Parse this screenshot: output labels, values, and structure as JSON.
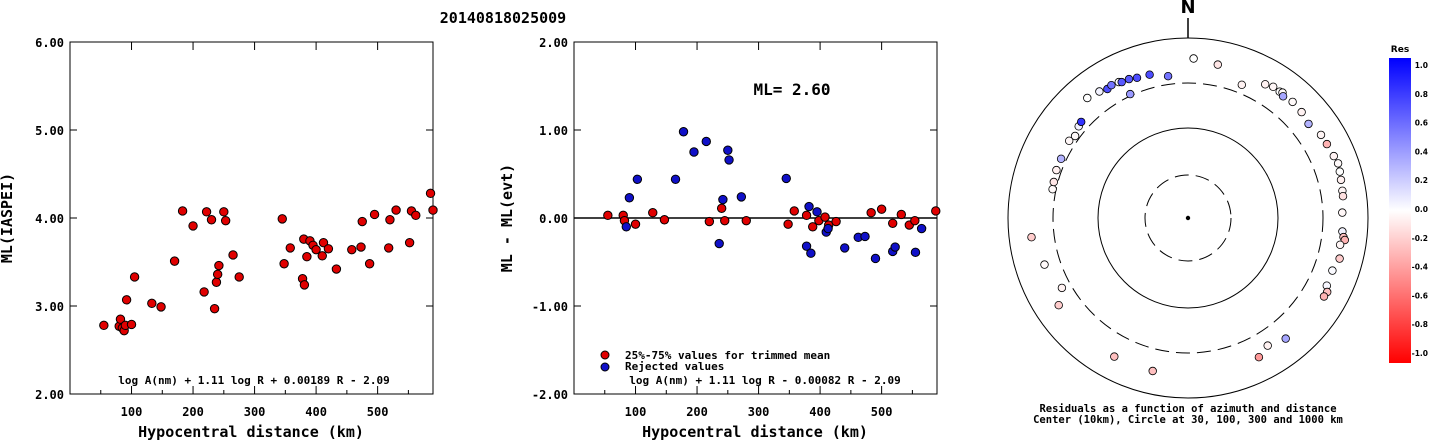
{
  "event_id": "20140818025009",
  "chart_data": [
    {
      "type": "scatter",
      "id": "ml-vs-distance",
      "xlabel": "Hypocentral distance (km)",
      "ylabel": "ML(IASPEI)",
      "xlim": [
        0,
        590
      ],
      "ylim": [
        2.0,
        6.0
      ],
      "xticks": [
        100,
        200,
        300,
        400,
        500
      ],
      "yticks": [
        "2.00",
        "3.00",
        "4.00",
        "5.00",
        "6.00"
      ],
      "formula": "log A(nm) + 1.11 log R + 0.00189 R - 2.09",
      "marker_color": "#e00000",
      "points": [
        [
          55,
          2.78
        ],
        [
          80,
          2.77
        ],
        [
          82,
          2.85
        ],
        [
          85,
          2.75
        ],
        [
          88,
          2.72
        ],
        [
          90,
          2.78
        ],
        [
          92,
          3.07
        ],
        [
          100,
          2.79
        ],
        [
          105,
          3.33
        ],
        [
          133,
          3.03
        ],
        [
          148,
          2.99
        ],
        [
          170,
          3.51
        ],
        [
          183,
          4.08
        ],
        [
          200,
          3.91
        ],
        [
          218,
          3.16
        ],
        [
          222,
          4.07
        ],
        [
          230,
          3.98
        ],
        [
          235,
          2.97
        ],
        [
          238,
          3.27
        ],
        [
          240,
          3.36
        ],
        [
          242,
          3.46
        ],
        [
          250,
          4.07
        ],
        [
          253,
          3.97
        ],
        [
          265,
          3.58
        ],
        [
          275,
          3.33
        ],
        [
          345,
          3.99
        ],
        [
          348,
          3.48
        ],
        [
          358,
          3.66
        ],
        [
          378,
          3.31
        ],
        [
          380,
          3.76
        ],
        [
          381,
          3.24
        ],
        [
          385,
          3.56
        ],
        [
          390,
          3.74
        ],
        [
          395,
          3.69
        ],
        [
          400,
          3.64
        ],
        [
          410,
          3.57
        ],
        [
          412,
          3.72
        ],
        [
          420,
          3.65
        ],
        [
          433,
          3.42
        ],
        [
          458,
          3.64
        ],
        [
          473,
          3.67
        ],
        [
          475,
          3.96
        ],
        [
          487,
          3.48
        ],
        [
          495,
          4.04
        ],
        [
          518,
          3.66
        ],
        [
          520,
          3.98
        ],
        [
          530,
          4.09
        ],
        [
          552,
          3.72
        ],
        [
          555,
          4.08
        ],
        [
          562,
          4.03
        ],
        [
          586,
          4.28
        ],
        [
          592,
          4.09
        ]
      ]
    },
    {
      "type": "scatter",
      "id": "residual-vs-distance",
      "xlabel": "Hypocentral distance (km)",
      "ylabel": "ML - ML(evt)",
      "xlim": [
        0,
        590
      ],
      "ylim": [
        -2.0,
        2.0
      ],
      "xticks": [
        100,
        200,
        300,
        400,
        500
      ],
      "yticks": [
        "-2.00",
        "-1.00",
        "0.00",
        "1.00",
        "2.00"
      ],
      "annotation": "ML= 2.60",
      "formula": "log A(nm) + 1.11 log R - 0.00082 R - 2.09",
      "legend": [
        {
          "label": "25%-75% values for trimmed mean",
          "color": "#e00000"
        },
        {
          "label": "Rejected values",
          "color": "#1010c8"
        }
      ],
      "series": [
        {
          "name": "25%-75% values for trimmed mean",
          "color": "#e00000",
          "points": [
            [
              55,
              0.03
            ],
            [
              80,
              0.03
            ],
            [
              82,
              -0.03
            ],
            [
              100,
              -0.07
            ],
            [
              128,
              0.06
            ],
            [
              147,
              -0.02
            ],
            [
              220,
              -0.04
            ],
            [
              240,
              0.11
            ],
            [
              245,
              -0.03
            ],
            [
              280,
              -0.03
            ],
            [
              348,
              -0.07
            ],
            [
              358,
              0.08
            ],
            [
              378,
              0.03
            ],
            [
              388,
              -0.1
            ],
            [
              398,
              -0.03
            ],
            [
              408,
              0.01
            ],
            [
              414,
              -0.08
            ],
            [
              426,
              -0.04
            ],
            [
              483,
              0.06
            ],
            [
              500,
              0.1
            ],
            [
              518,
              -0.06
            ],
            [
              532,
              0.04
            ],
            [
              545,
              -0.08
            ],
            [
              554,
              -0.03
            ],
            [
              588,
              0.08
            ]
          ]
        },
        {
          "name": "Rejected values",
          "color": "#1010c8",
          "points": [
            [
              85,
              -0.1
            ],
            [
              90,
              0.23
            ],
            [
              103,
              0.44
            ],
            [
              165,
              0.44
            ],
            [
              178,
              0.98
            ],
            [
              195,
              0.75
            ],
            [
              215,
              0.87
            ],
            [
              236,
              -0.29
            ],
            [
              242,
              0.21
            ],
            [
              250,
              0.77
            ],
            [
              252,
              0.66
            ],
            [
              272,
              0.24
            ],
            [
              345,
              0.45
            ],
            [
              378,
              -0.32
            ],
            [
              382,
              0.13
            ],
            [
              385,
              -0.4
            ],
            [
              395,
              0.07
            ],
            [
              410,
              -0.16
            ],
            [
              413,
              -0.12
            ],
            [
              440,
              -0.34
            ],
            [
              462,
              -0.22
            ],
            [
              473,
              -0.21
            ],
            [
              490,
              -0.46
            ],
            [
              518,
              -0.38
            ],
            [
              522,
              -0.33
            ],
            [
              555,
              -0.39
            ],
            [
              565,
              -0.12
            ]
          ]
        }
      ]
    },
    {
      "type": "polar-scatter",
      "id": "residual-azimuth-distance",
      "north_label": "N",
      "caption_line1": "Residuals as a function of azimuth and distance",
      "caption_line2": "Center (10km), Circle at 30, 100, 300 and 1000 km",
      "rings_km": [
        30,
        100,
        300,
        1000
      ],
      "colorbar": {
        "title": "Res",
        "ticks": [
          "1.0",
          "0.8",
          "0.6",
          "0.4",
          "0.2",
          "0.0",
          "-0.2",
          "-0.4",
          "-0.6",
          "-0.8",
          "-1.0"
        ],
        "max_color": "#0000ff",
        "zero_color": "#ffffff",
        "min_color": "#ff0000"
      },
      "points": [
        {
          "azimuth": 2,
          "distance_km": 593,
          "residual": 0.0
        },
        {
          "azimuth": 11,
          "distance_km": 545,
          "residual": -0.1
        },
        {
          "azimuth": 22,
          "distance_km": 395,
          "residual": -0.05
        },
        {
          "azimuth": 30,
          "distance_km": 520,
          "residual": -0.05
        },
        {
          "azimuth": 33,
          "distance_km": 548,
          "residual": -0.03
        },
        {
          "azimuth": 36,
          "distance_km": 542,
          "residual": 0.0
        },
        {
          "azimuth": 37,
          "distance_km": 555,
          "residual": -0.02
        },
        {
          "azimuth": 38,
          "distance_km": 520,
          "residual": 0.35
        },
        {
          "azimuth": 42,
          "distance_km": 545,
          "residual": -0.02
        },
        {
          "azimuth": 47,
          "distance_km": 532,
          "residual": -0.05
        },
        {
          "azimuth": 52,
          "distance_km": 500,
          "residual": 0.3
        },
        {
          "azimuth": 58,
          "distance_km": 553,
          "residual": -0.04
        },
        {
          "azimuth": 62,
          "distance_km": 560,
          "residual": -0.3
        },
        {
          "azimuth": 67,
          "distance_km": 575,
          "residual": -0.05
        },
        {
          "azimuth": 70,
          "distance_km": 595,
          "residual": -0.02
        },
        {
          "azimuth": 73,
          "distance_km": 580,
          "residual": 0.0
        },
        {
          "azimuth": 76,
          "distance_km": 565,
          "residual": -0.06
        },
        {
          "azimuth": 80,
          "distance_km": 552,
          "residual": -0.04
        },
        {
          "azimuth": 82,
          "distance_km": 548,
          "residual": -0.12
        },
        {
          "azimuth": 88,
          "distance_km": 520,
          "residual": -0.03
        },
        {
          "azimuth": 95,
          "distance_km": 528,
          "residual": 0.05
        },
        {
          "azimuth": 97,
          "distance_km": 550,
          "residual": -0.25
        },
        {
          "azimuth": 98,
          "distance_km": 575,
          "residual": -0.3
        },
        {
          "azimuth": 100,
          "distance_km": 520,
          "residual": -0.04
        },
        {
          "azimuth": 105,
          "distance_km": 555,
          "residual": -0.2
        },
        {
          "azimuth": 110,
          "distance_km": 510,
          "residual": 0.02
        },
        {
          "azimuth": 116,
          "distance_km": 520,
          "residual": 0.03
        },
        {
          "azimuth": 118,
          "distance_km": 565,
          "residual": -0.25
        },
        {
          "azimuth": 120,
          "distance_km": 555,
          "residual": -0.3
        },
        {
          "azimuth": 141,
          "distance_km": 530,
          "residual": 0.35
        },
        {
          "azimuth": 148,
          "distance_km": 470,
          "residual": -0.05
        },
        {
          "azimuth": 153,
          "distance_km": 545,
          "residual": -0.4
        },
        {
          "azimuth": 193,
          "distance_km": 555,
          "residual": -0.25
        },
        {
          "azimuth": 208,
          "distance_km": 555,
          "residual": -0.25
        },
        {
          "azimuth": 236,
          "distance_km": 540,
          "residual": -0.2
        },
        {
          "azimuth": 241,
          "distance_km": 400,
          "residual": -0.05
        },
        {
          "azimuth": 252,
          "distance_km": 475,
          "residual": -0.02
        },
        {
          "azimuth": 263,
          "distance_km": 565,
          "residual": -0.2
        },
        {
          "azimuth": 282,
          "distance_km": 345,
          "residual": -0.02
        },
        {
          "azimuth": 285,
          "distance_km": 350,
          "residual": -0.1
        },
        {
          "azimuth": 290,
          "distance_km": 360,
          "residual": -0.06
        },
        {
          "azimuth": 295,
          "distance_km": 360,
          "residual": 0.3
        },
        {
          "azimuth": 303,
          "distance_km": 375,
          "residual": -0.03
        },
        {
          "azimuth": 306,
          "distance_km": 355,
          "residual": -0.02
        },
        {
          "azimuth": 310,
          "distance_km": 385,
          "residual": 0.05
        },
        {
          "azimuth": 312,
          "distance_km": 395,
          "residual": 0.8
        },
        {
          "azimuth": 320,
          "distance_km": 550,
          "residual": 0.0
        },
        {
          "azimuth": 325,
          "distance_km": 520,
          "residual": 0.05
        },
        {
          "azimuth": 328,
          "distance_km": 490,
          "residual": 0.7
        },
        {
          "azimuth": 330,
          "distance_km": 505,
          "residual": 0.55
        },
        {
          "azimuth": 333,
          "distance_km": 495,
          "residual": 0.0
        },
        {
          "azimuth": 334,
          "distance_km": 478,
          "residual": 0.65
        },
        {
          "azimuth": 337,
          "distance_km": 475,
          "residual": 0.65
        },
        {
          "azimuth": 340,
          "distance_km": 455,
          "residual": 0.7
        },
        {
          "azimuth": 345,
          "distance_km": 445,
          "residual": 0.7
        },
        {
          "azimuth": 335,
          "distance_km": 330,
          "residual": 0.4
        },
        {
          "azimuth": 352,
          "distance_km": 390,
          "residual": 0.55
        }
      ]
    }
  ]
}
